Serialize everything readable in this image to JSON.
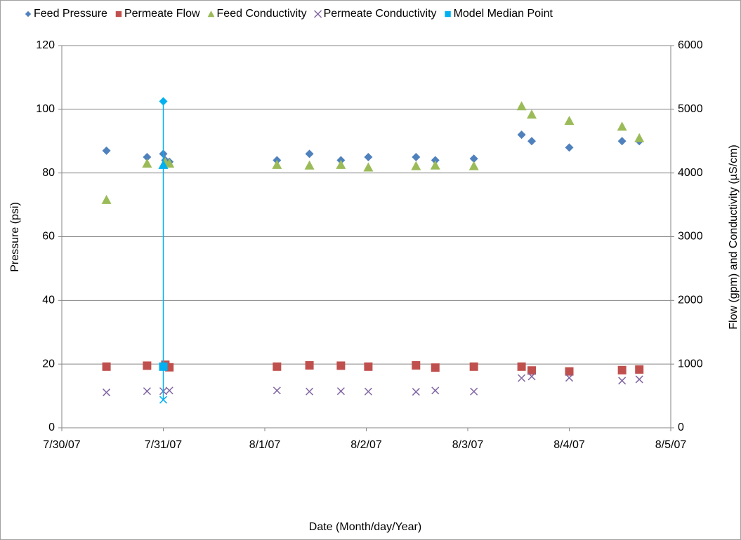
{
  "chart_data": {
    "type": "scatter",
    "xlabel": "Date (Month/day/Year)",
    "ylabel": "Pressure (psi)",
    "y2label": "Flow (gpm) and Conductivity (µS/cm)",
    "xlim": [
      39293,
      39299
    ],
    "xticks": [
      {
        "value": 39293,
        "label": "7/30/07"
      },
      {
        "value": 39294,
        "label": "7/31/07"
      },
      {
        "value": 39295,
        "label": "8/1/07"
      },
      {
        "value": 39296,
        "label": "8/2/07"
      },
      {
        "value": 39297,
        "label": "8/3/07"
      },
      {
        "value": 39298,
        "label": "8/4/07"
      },
      {
        "value": 39299,
        "label": "8/5/07"
      }
    ],
    "ylim": [
      0,
      120
    ],
    "yticks": [
      0,
      20,
      40,
      60,
      80,
      100,
      120
    ],
    "y2lim": [
      0,
      6000
    ],
    "y2ticks": [
      0,
      1000,
      2000,
      3000,
      4000,
      5000,
      6000
    ],
    "grid": true,
    "legend": "top",
    "series": [
      {
        "name": "Feed Pressure",
        "color": "#4f81bd",
        "marker": "diamond",
        "axis": "y",
        "x": [
          39293.44,
          39293.84,
          39294.0,
          39294.02,
          39294.06,
          39295.12,
          39295.44,
          39295.75,
          39296.02,
          39296.49,
          39296.68,
          39297.06,
          39297.53,
          39297.63,
          39298.0,
          39298.52,
          39298.69
        ],
        "values": [
          87,
          85,
          86,
          84,
          83.5,
          84,
          86,
          84,
          85,
          85,
          84,
          84.5,
          92,
          90,
          88,
          90,
          90
        ]
      },
      {
        "name": "Permeate Flow",
        "color": "#c0504d",
        "marker": "square",
        "axis": "y2",
        "x": [
          39293.44,
          39293.84,
          39294.02,
          39294.06,
          39295.12,
          39295.44,
          39295.75,
          39296.02,
          39296.49,
          39296.68,
          39297.06,
          39297.53,
          39297.63,
          39298.0,
          39298.52,
          39298.69
        ],
        "values": [
          960,
          975,
          990,
          950,
          960,
          980,
          975,
          960,
          980,
          945,
          960,
          960,
          900,
          885,
          905,
          915
        ]
      },
      {
        "name": "Feed Conductivity",
        "color": "#9bbb59",
        "marker": "triangle",
        "axis": "y2",
        "x": [
          39293.44,
          39293.84,
          39294.02,
          39294.06,
          39295.12,
          39295.44,
          39295.75,
          39296.02,
          39296.49,
          39296.68,
          39297.06,
          39297.53,
          39297.63,
          39298.0,
          39298.52,
          39298.69
        ],
        "values": [
          3580,
          4150,
          4170,
          4150,
          4130,
          4120,
          4130,
          4090,
          4110,
          4120,
          4110,
          5050,
          4920,
          4820,
          4730,
          4550
        ]
      },
      {
        "name": "Permeate Conductivity",
        "color": "#8064a2",
        "marker": "x",
        "axis": "y2",
        "x": [
          39293.44,
          39293.84,
          39294.0,
          39294.06,
          39295.12,
          39295.44,
          39295.75,
          39296.02,
          39296.49,
          39296.68,
          39297.06,
          39297.53,
          39297.63,
          39298.0,
          39298.52,
          39298.69
        ],
        "values": [
          555,
          575,
          575,
          585,
          585,
          570,
          575,
          570,
          565,
          585,
          570,
          780,
          805,
          785,
          740,
          760
        ]
      },
      {
        "name": "Model Median Point",
        "color": "#00b0f0",
        "marker": "square",
        "line": true,
        "x": [
          39294.0,
          39294.0,
          39294.0,
          39294.0
        ],
        "values": [
          102.5,
          4130,
          960,
          440
        ],
        "axes": [
          "y",
          "y2",
          "y2",
          "y2"
        ],
        "markers": [
          "diamond",
          "triangle",
          "square",
          "x"
        ]
      }
    ]
  }
}
